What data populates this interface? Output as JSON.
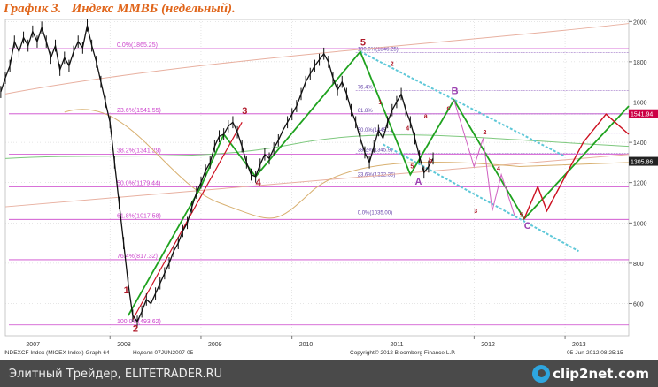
{
  "title": "График 3.   Индекс ММВБ (недельный).",
  "chart_data": {
    "type": "line",
    "ylim": [
      440,
      2010
    ],
    "y_ticks": [
      600,
      800,
      1000,
      1200,
      1400,
      1600,
      1800,
      2000
    ],
    "x_ticks": [
      "2007",
      "2008",
      "2009",
      "2010",
      "2011",
      "2012",
      "2013"
    ],
    "fib_levels": [
      {
        "label": "0.0%(1865.25)",
        "value": 1865.25
      },
      {
        "label": "23.6%(1541.55)",
        "value": 1541.55
      },
      {
        "label": "38.2%(1341.29)",
        "value": 1341.29
      },
      {
        "label": "50.0%(1179.44)",
        "value": 1179.44
      },
      {
        "label": "61.8%(1017.58)",
        "value": 1017.58
      },
      {
        "label": "76.4%(817.32)",
        "value": 817.32
      },
      {
        "label": "100.0%(493.62)",
        "value": 493.62
      }
    ],
    "fib_levels_2": [
      {
        "label": "100.0%(1846.25)",
        "value": 1846.25
      },
      {
        "label": "76.4%",
        "value": 1656.0
      },
      {
        "label": "61.8%",
        "value": 1541.0
      },
      {
        "label": "50.0%(1445...)",
        "value": 1445.0
      },
      {
        "label": "38.2%(1345.9)",
        "value": 1345.9
      },
      {
        "label": "23.6%(1222.35)",
        "value": 1222.35
      },
      {
        "label": "0.0%(1035.00)",
        "value": 1035.0
      }
    ],
    "last_values": [
      {
        "label": "1541.94",
        "value": 1541.94,
        "color": "#cc0044"
      },
      {
        "label": "1305.86",
        "value": 1305.86,
        "color": "#222222"
      }
    ],
    "wave_labels_primary": [
      {
        "label": "1",
        "x": 2008.15,
        "y": 650
      },
      {
        "label": "2",
        "x": 2008.25,
        "y": 460
      },
      {
        "label": "3",
        "x": 2009.45,
        "y": 1540
      },
      {
        "label": "4",
        "x": 2009.6,
        "y": 1185
      },
      {
        "label": "5",
        "x": 2010.75,
        "y": 1880
      },
      {
        "label": "A",
        "x": 2011.35,
        "y": 1190
      },
      {
        "label": "B",
        "x": 2011.75,
        "y": 1640
      },
      {
        "label": "C",
        "x": 2012.55,
        "y": 970
      }
    ],
    "wave_labels_secondary": [
      {
        "label": "1",
        "x": 2010.95,
        "y": 1590
      },
      {
        "label": "2",
        "x": 2011.08,
        "y": 1780
      },
      {
        "label": "4",
        "x": 2011.25,
        "y": 1460
      },
      {
        "label": "5",
        "x": 2011.3,
        "y": 1270
      },
      {
        "label": "a",
        "x": 2011.45,
        "y": 1520
      },
      {
        "label": "b",
        "x": 2011.5,
        "y": 1300
      },
      {
        "label": "c",
        "x": 2011.7,
        "y": 1560
      },
      {
        "label": "2",
        "x": 2012.1,
        "y": 1440
      },
      {
        "label": "4",
        "x": 2012.25,
        "y": 1260
      },
      {
        "label": "3",
        "x": 2012.0,
        "y": 1050
      },
      {
        "label": "5",
        "x": 2012.5,
        "y": 1030
      }
    ],
    "price_path": [
      [
        2006.8,
        1650
      ],
      [
        2006.85,
        1720
      ],
      [
        2006.9,
        1780
      ],
      [
        2006.95,
        1900
      ],
      [
        2007.0,
        1850
      ],
      [
        2007.05,
        1920
      ],
      [
        2007.1,
        1880
      ],
      [
        2007.15,
        1950
      ],
      [
        2007.2,
        1900
      ],
      [
        2007.25,
        1970
      ],
      [
        2007.3,
        1900
      ],
      [
        2007.35,
        1820
      ],
      [
        2007.4,
        1880
      ],
      [
        2007.45,
        1760
      ],
      [
        2007.5,
        1820
      ],
      [
        2007.55,
        1780
      ],
      [
        2007.6,
        1850
      ],
      [
        2007.65,
        1900
      ],
      [
        2007.7,
        1870
      ],
      [
        2007.75,
        1980
      ],
      [
        2007.8,
        1880
      ],
      [
        2007.85,
        1800
      ],
      [
        2007.9,
        1700
      ],
      [
        2007.95,
        1600
      ],
      [
        2008.0,
        1500
      ],
      [
        2008.05,
        1300
      ],
      [
        2008.1,
        1100
      ],
      [
        2008.15,
        900
      ],
      [
        2008.2,
        700
      ],
      [
        2008.25,
        540
      ],
      [
        2008.3,
        510
      ],
      [
        2008.35,
        560
      ],
      [
        2008.4,
        620
      ],
      [
        2008.45,
        600
      ],
      [
        2008.5,
        650
      ],
      [
        2008.55,
        700
      ],
      [
        2008.6,
        750
      ],
      [
        2008.65,
        800
      ],
      [
        2008.7,
        860
      ],
      [
        2008.75,
        900
      ],
      [
        2008.8,
        960
      ],
      [
        2008.85,
        1000
      ],
      [
        2008.9,
        1080
      ],
      [
        2008.95,
        1150
      ],
      [
        2009.0,
        1200
      ],
      [
        2009.05,
        1260
      ],
      [
        2009.1,
        1300
      ],
      [
        2009.15,
        1380
      ],
      [
        2009.2,
        1430
      ],
      [
        2009.25,
        1440
      ],
      [
        2009.3,
        1480
      ],
      [
        2009.35,
        1500
      ],
      [
        2009.4,
        1450
      ],
      [
        2009.45,
        1380
      ],
      [
        2009.5,
        1300
      ],
      [
        2009.55,
        1240
      ],
      [
        2009.6,
        1230
      ],
      [
        2009.65,
        1290
      ],
      [
        2009.7,
        1340
      ],
      [
        2009.75,
        1320
      ],
      [
        2009.8,
        1370
      ],
      [
        2009.85,
        1410
      ],
      [
        2009.9,
        1460
      ],
      [
        2009.95,
        1500
      ],
      [
        2010.0,
        1540
      ],
      [
        2010.05,
        1580
      ],
      [
        2010.1,
        1640
      ],
      [
        2010.15,
        1700
      ],
      [
        2010.2,
        1740
      ],
      [
        2010.25,
        1780
      ],
      [
        2010.3,
        1810
      ],
      [
        2010.35,
        1840
      ],
      [
        2010.4,
        1800
      ],
      [
        2010.45,
        1720
      ],
      [
        2010.5,
        1660
      ],
      [
        2010.55,
        1700
      ],
      [
        2010.6,
        1640
      ],
      [
        2010.65,
        1560
      ],
      [
        2010.7,
        1500
      ],
      [
        2010.75,
        1420
      ],
      [
        2010.8,
        1350
      ],
      [
        2010.85,
        1300
      ],
      [
        2010.9,
        1380
      ],
      [
        2010.95,
        1460
      ],
      [
        2011.0,
        1420
      ],
      [
        2011.05,
        1500
      ],
      [
        2011.1,
        1560
      ],
      [
        2011.15,
        1600
      ],
      [
        2011.2,
        1640
      ],
      [
        2011.25,
        1560
      ],
      [
        2011.3,
        1500
      ],
      [
        2011.35,
        1420
      ],
      [
        2011.4,
        1330
      ],
      [
        2011.45,
        1250
      ],
      [
        2011.5,
        1280
      ],
      [
        2011.55,
        1320
      ]
    ]
  },
  "x_axis_title": "INDEXCF Index (MICEX Index) Graph 64",
  "x_axis_period": "Неделя 07JUN2007-05",
  "copyright": "Copyright© 2012 Bloomberg Finance L.P.",
  "timestamp": "05-Jun-2012 08:25:15",
  "footer": {
    "source_text": "Элитный Трейдер, ELITETRADER.RU",
    "brand": "clip2net.com"
  },
  "colors": {
    "title": "#e0651a",
    "fib": "#cc44cc",
    "wave_primary": "#b01a2a",
    "wave_label_c": "#9b3fb0",
    "green": "#1fa21f",
    "red_line": "#cc1020",
    "cyan_channel": "#5ec8d8",
    "price": "#111111"
  }
}
